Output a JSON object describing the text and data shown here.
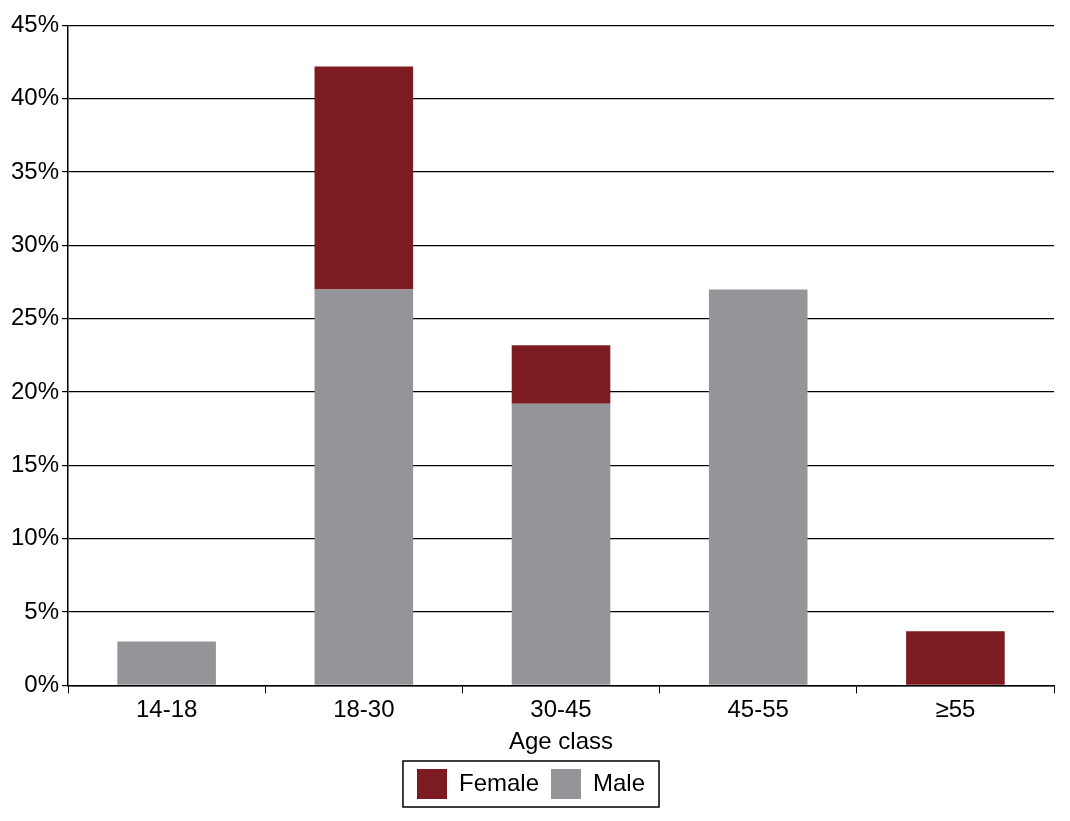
{
  "chart_data": {
    "type": "bar",
    "xlabel": "Age class",
    "categories": [
      "14-18",
      "18-30",
      "30-45",
      "45-55",
      "≥55"
    ],
    "series": [
      {
        "name": "Male",
        "color": "#939598",
        "values": [
          3.0,
          27.0,
          19.2,
          27.0,
          0
        ]
      },
      {
        "name": "Female",
        "color": "#7d1c20",
        "values": [
          0,
          15.2,
          4.0,
          0,
          3.7
        ]
      }
    ],
    "stacked": true,
    "ylim": [
      0,
      45
    ],
    "yticks": [
      {
        "value": 0,
        "label": "0%"
      },
      {
        "value": 5,
        "label": "5%"
      },
      {
        "value": 10,
        "label": "10%"
      },
      {
        "value": 15,
        "label": "15%"
      },
      {
        "value": 20,
        "label": "20%"
      },
      {
        "value": 25,
        "label": "25%"
      },
      {
        "value": 30,
        "label": "30%"
      },
      {
        "value": 35,
        "label": "35%"
      },
      {
        "value": 40,
        "label": "40%"
      },
      {
        "value": 45,
        "label": "45%"
      }
    ],
    "grid": "y",
    "legend": "bottom"
  }
}
